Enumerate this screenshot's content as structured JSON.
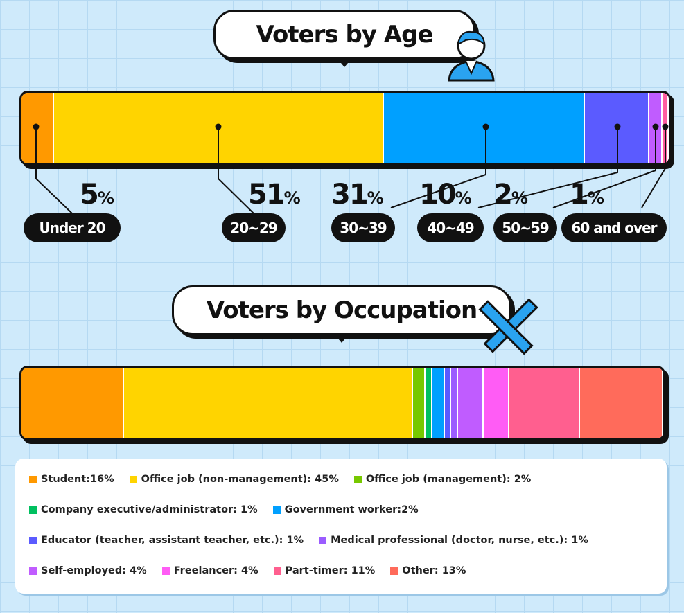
{
  "chart_data": [
    {
      "type": "bar",
      "title": "Voters by Age",
      "orientation": "stacked-horizontal",
      "unit": "%",
      "categories": [
        "Under 20",
        "20~29",
        "30~39",
        "40~49",
        "50~59",
        "60 and over"
      ],
      "values": [
        5,
        51,
        31,
        10,
        2,
        1
      ],
      "colors": [
        "#ff9900",
        "#ffd400",
        "#00a0ff",
        "#5b5bff",
        "#c05cff",
        "#ff5fa0"
      ]
    },
    {
      "type": "bar",
      "title": "Voters by Occupation",
      "orientation": "stacked-horizontal",
      "unit": "%",
      "categories": [
        "Student",
        "Office job (non-management)",
        "Office job (management)",
        "Company executive/administrator",
        "Government worker",
        "Educator (teacher, assistant teacher, etc.)",
        "Medical professional (doctor, nurse, etc.)",
        "Self-employed",
        "Freelancer",
        "Part-timer",
        "Other"
      ],
      "values": [
        16,
        45,
        2,
        1,
        2,
        1,
        1,
        4,
        4,
        11,
        13
      ],
      "legend_labels": [
        "Student:16%",
        "Office job (non-management): 45%",
        "Office job (management): 2%",
        "Company executive/administrator: 1%",
        "Government worker:2%",
        "Educator (teacher, assistant teacher, etc.): 1%",
        "Medical professional (doctor, nurse, etc.): 1%",
        "Self-employed: 4%",
        "Freelancer: 4%",
        "Part-timer: 11%",
        "Other: 13%"
      ],
      "colors": [
        "#ff9900",
        "#ffd400",
        "#77c800",
        "#00c060",
        "#00a0ff",
        "#5b5bff",
        "#9b5cff",
        "#c05cff",
        "#ff5cf5",
        "#ff5f8f",
        "#ff6b5b"
      ],
      "legend": "bottom"
    }
  ],
  "pct_suffix": "%"
}
